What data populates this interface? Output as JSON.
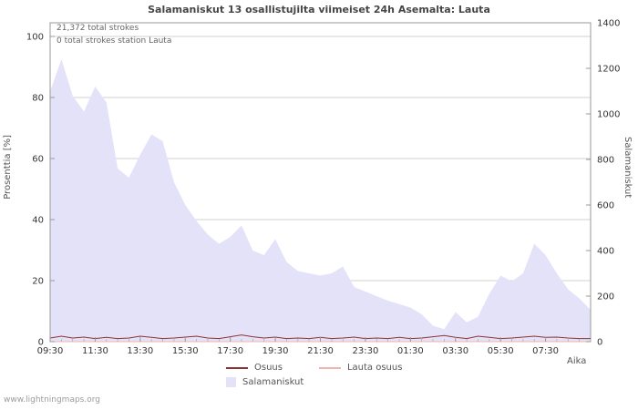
{
  "title": "Salamaniskut 13 osallistujilta viimeiset 24h Asemalta: Lauta",
  "annotations": {
    "total_strokes": "21,372 total strokes",
    "station_strokes": "0 total strokes station Lauta"
  },
  "axes": {
    "x_label": "Aika",
    "y_left_label": "Prosenttia  [%]",
    "y_right_label": "Salamaniskut"
  },
  "legend": {
    "osuus": "Osuus",
    "lauta_osuus": "Lauta osuus",
    "salamaniskut": "Salamaniskut"
  },
  "watermark": "www.lightningmaps.org",
  "chart_data": {
    "type": "area",
    "title": "Salamaniskut 13 osallistujilta viimeiset 24h Asemalta: Lauta",
    "x_axis": {
      "label": "Aika",
      "tick_labels": [
        "09:30",
        "11:30",
        "13:30",
        "15:30",
        "17:30",
        "19:30",
        "21:30",
        "23:30",
        "01:30",
        "03:30",
        "05:30",
        "07:30"
      ],
      "points_per_hour": 2,
      "total_hours": 24
    },
    "y_left": {
      "label": "Prosenttia  [%]",
      "ticks": [
        0,
        20,
        40,
        60,
        80,
        100
      ],
      "range": [
        0,
        100
      ]
    },
    "y_right": {
      "label": "Salamaniskut",
      "ticks": [
        0,
        200,
        400,
        600,
        800,
        1000,
        1200,
        1400
      ],
      "range": [
        0,
        1400
      ]
    },
    "grid": "horizontal",
    "legend_position": "bottom",
    "series": [
      {
        "name": "Salamaniskut",
        "type": "area",
        "axis": "right",
        "color": "#e4e2f8",
        "values": [
          1100,
          1240,
          1080,
          1010,
          1120,
          1050,
          760,
          720,
          820,
          910,
          880,
          700,
          600,
          530,
          470,
          430,
          460,
          510,
          400,
          380,
          450,
          350,
          310,
          300,
          290,
          300,
          330,
          240,
          220,
          200,
          180,
          165,
          150,
          120,
          70,
          55,
          130,
          85,
          110,
          210,
          290,
          265,
          300,
          430,
          380,
          300,
          230,
          190,
          140
        ]
      },
      {
        "name": "Osuus",
        "type": "line",
        "axis": "left",
        "color": "#8e3333",
        "values": [
          1.2,
          1.8,
          1.2,
          1.5,
          1.0,
          1.4,
          1.0,
          1.2,
          1.8,
          1.4,
          1.0,
          1.2,
          1.5,
          1.8,
          1.2,
          1.0,
          1.6,
          2.2,
          1.6,
          1.2,
          1.5,
          1.0,
          1.2,
          1.0,
          1.4,
          1.0,
          1.2,
          1.5,
          1.0,
          1.2,
          1.0,
          1.4,
          1.0,
          1.2,
          1.6,
          2.0,
          1.4,
          1.0,
          1.8,
          1.4,
          1.0,
          1.2,
          1.5,
          1.8,
          1.4,
          1.5,
          1.2,
          1.0,
          1.0
        ]
      },
      {
        "name": "Lauta osuus",
        "type": "line",
        "axis": "left",
        "color": "#f0b6ae",
        "values": [
          0,
          0,
          0,
          0,
          0,
          0,
          0,
          0,
          0,
          0,
          0,
          0,
          0,
          0,
          0,
          0,
          0,
          0,
          0,
          0,
          0,
          0,
          0,
          0,
          0,
          0,
          0,
          0,
          0,
          0,
          0,
          0,
          0,
          0,
          0,
          0,
          0,
          0,
          0,
          0,
          0,
          0,
          0,
          0,
          0,
          0,
          0,
          0,
          0
        ]
      }
    ],
    "annotations": [
      "21,372 total strokes",
      "0 total strokes station Lauta"
    ]
  }
}
